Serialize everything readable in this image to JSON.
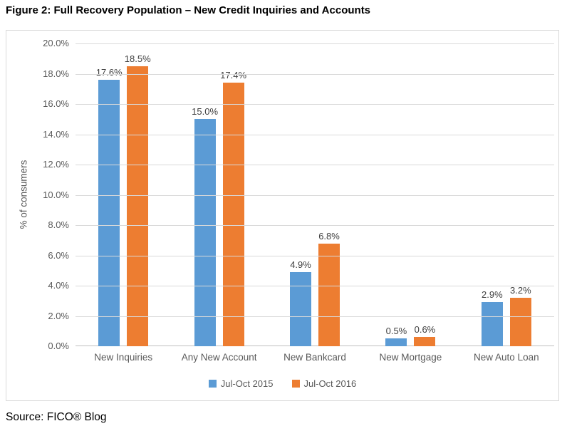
{
  "title": "Figure 2: Full Recovery Population – New Credit Inquiries and Accounts",
  "source": "Source: FICO® Blog",
  "colors": {
    "series_2015": "#5B9BD5",
    "series_2016": "#ED7D31",
    "gridline": "#D9D9D9",
    "axis_line": "#BFBFBF",
    "tick_text": "#595959",
    "data_label_text": "#404040",
    "chart_border": "#D9D9D9"
  },
  "chart_data": {
    "type": "bar",
    "title": "",
    "xlabel": "",
    "ylabel": "% of consumers",
    "ylim": [
      0,
      20
    ],
    "ytick_step": 2,
    "ytick_labels": [
      "0.0%",
      "2.0%",
      "4.0%",
      "6.0%",
      "8.0%",
      "10.0%",
      "12.0%",
      "14.0%",
      "16.0%",
      "18.0%",
      "20.0%"
    ],
    "grid": true,
    "legend_position": "bottom",
    "categories": [
      "New Inquiries",
      "Any New Account",
      "New Bankcard",
      "New Mortgage",
      "New Auto Loan"
    ],
    "series": [
      {
        "name": "Jul-Oct 2015",
        "color": "#5B9BD5",
        "values": [
          17.6,
          15.0,
          4.9,
          0.5,
          2.9
        ],
        "labels": [
          "17.6%",
          "15.0%",
          "4.9%",
          "0.5%",
          "2.9%"
        ]
      },
      {
        "name": "Jul-Oct 2016",
        "color": "#ED7D31",
        "values": [
          18.5,
          17.4,
          6.8,
          0.6,
          3.2
        ],
        "labels": [
          "18.5%",
          "17.4%",
          "6.8%",
          "0.6%",
          "3.2%"
        ]
      }
    ]
  }
}
